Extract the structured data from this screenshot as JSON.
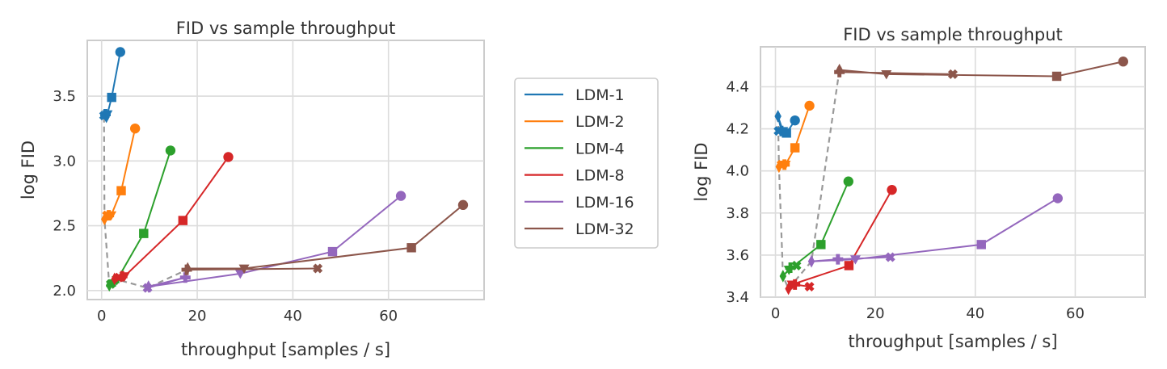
{
  "chart_data": [
    {
      "type": "line",
      "title": "FID vs sample throughput",
      "xlabel": "throughput [samples / s]",
      "ylabel": "log FID",
      "xlim": [
        -3,
        80
      ],
      "ylim": [
        1.93,
        3.93
      ],
      "xticks": [
        0,
        20,
        40,
        60
      ],
      "yticks": [
        2.0,
        2.5,
        3.0,
        3.5
      ],
      "ytick_labels": [
        "2.0",
        "2.5",
        "3.0",
        "3.5"
      ],
      "grid": true,
      "markers": [
        "X",
        "P",
        "d",
        "v",
        "s",
        "o"
      ],
      "series": [
        {
          "name": "LDM-1",
          "color": "#1f77b4",
          "x": [
            0.5,
            0.8,
            1.0,
            1.2,
            2.1,
            3.9
          ],
          "y": [
            3.35,
            3.36,
            3.34,
            3.36,
            3.49,
            3.84
          ]
        },
        {
          "name": "LDM-2",
          "color": "#ff7f0e",
          "x": [
            1.1,
            1.5,
            0.6,
            2.0,
            4.1,
            7.0
          ],
          "y": [
            2.58,
            2.58,
            2.55,
            2.58,
            2.77,
            3.25
          ]
        },
        {
          "name": "LDM-4",
          "color": "#2ca02c",
          "x": [
            1.9,
            2.6,
            1.6,
            3.2,
            8.8,
            14.4
          ],
          "y": [
            2.05,
            2.07,
            2.04,
            2.08,
            2.44,
            3.08
          ]
        },
        {
          "name": "LDM-8",
          "color": "#d62728",
          "x": [
            3.6,
            4.3,
            2.7,
            4.8,
            17.0,
            26.5
          ],
          "y": [
            2.1,
            2.11,
            2.09,
            2.11,
            2.54,
            3.03
          ]
        },
        {
          "name": "LDM-16",
          "color": "#9467bd",
          "x": [
            9.6,
            17.5,
            9.8,
            29.0,
            48.3,
            62.6
          ],
          "y": [
            2.02,
            2.1,
            2.03,
            2.13,
            2.3,
            2.73
          ]
        },
        {
          "name": "LDM-32",
          "color": "#8c564b",
          "x": [
            45.2,
            17.8,
            18.0,
            29.8,
            64.8,
            75.6
          ],
          "y": [
            2.17,
            2.16,
            2.17,
            2.17,
            2.33,
            2.66
          ]
        }
      ],
      "frontier": {
        "color": "#999999",
        "x": [
          0.5,
          0.6,
          1.6,
          2.7,
          9.6,
          17.8
        ],
        "y": [
          3.34,
          2.55,
          2.04,
          2.09,
          2.02,
          2.16
        ]
      }
    },
    {
      "type": "line",
      "title": "FID vs sample throughput",
      "xlabel": "throughput [samples / s]",
      "ylabel": "log FID",
      "xlim": [
        -3,
        74
      ],
      "ylim": [
        3.4,
        4.59
      ],
      "xticks": [
        0,
        20,
        40,
        60
      ],
      "yticks": [
        3.4,
        3.6,
        3.8,
        4.0,
        4.2,
        4.4
      ],
      "ytick_labels": [
        "3.4",
        "3.6",
        "3.8",
        "4.0",
        "4.2",
        "4.4"
      ],
      "grid": true,
      "markers": [
        "X",
        "P",
        "d",
        "v",
        "s",
        "o"
      ],
      "series": [
        {
          "name": "LDM-1",
          "color": "#1f77b4",
          "x": [
            0.6,
            1.2,
            0.5,
            1.5,
            2.2,
            3.9
          ],
          "y": [
            4.19,
            4.19,
            4.26,
            4.19,
            4.18,
            4.24
          ]
        },
        {
          "name": "LDM-2",
          "color": "#ff7f0e",
          "x": [
            1.2,
            1.8,
            0.7,
            2.0,
            3.9,
            6.8
          ],
          "y": [
            4.03,
            4.03,
            4.02,
            4.03,
            4.11,
            4.31
          ]
        },
        {
          "name": "LDM-4",
          "color": "#2ca02c",
          "x": [
            4.2,
            3.0,
            1.5,
            2.7,
            9.1,
            14.6
          ],
          "y": [
            3.55,
            3.54,
            3.5,
            3.53,
            3.65,
            3.95
          ]
        },
        {
          "name": "LDM-8",
          "color": "#d62728",
          "x": [
            6.8,
            3.9,
            2.6,
            3.3,
            14.7,
            23.3
          ],
          "y": [
            3.45,
            3.46,
            3.44,
            3.46,
            3.55,
            3.91
          ]
        },
        {
          "name": "LDM-16",
          "color": "#9467bd",
          "x": [
            23.0,
            12.5,
            7.2,
            16.0,
            41.2,
            56.5
          ],
          "y": [
            3.59,
            3.58,
            3.57,
            3.58,
            3.65,
            3.87
          ]
        },
        {
          "name": "LDM-32",
          "color": "#8c564b",
          "x": [
            35.5,
            12.8,
            12.8,
            22.2,
            56.3,
            69.6
          ],
          "y": [
            4.46,
            4.47,
            4.48,
            4.46,
            4.45,
            4.52
          ]
        }
      ],
      "frontier": {
        "color": "#999999",
        "x": [
          0.5,
          0.7,
          1.5,
          2.6,
          7.2,
          12.8
        ],
        "y": [
          4.26,
          4.02,
          3.5,
          3.44,
          3.57,
          4.48
        ]
      }
    }
  ]
}
